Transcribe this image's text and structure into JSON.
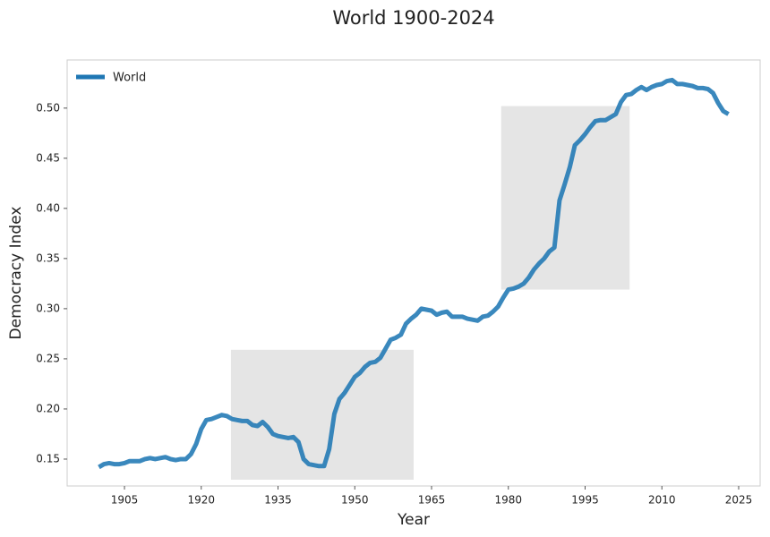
{
  "chart_data": {
    "type": "line",
    "title": "World 1900-2024",
    "xlabel": "Year",
    "ylabel": "Democracy Index",
    "legend": "upper left",
    "grid": false,
    "xlim": [
      1893.8,
      2029.2
    ],
    "ylim": [
      0.1232,
      0.548
    ],
    "xticks": [
      1905,
      1920,
      1935,
      1950,
      1965,
      1980,
      1995,
      2010,
      2025
    ],
    "yticks": [
      0.15,
      {
        "value": 0.2,
        "label": "0.20"
      },
      0.25,
      {
        "value": 0.3,
        "label": "0.30"
      },
      0.35,
      {
        "value": 0.4,
        "label": "0.40"
      },
      0.45,
      {
        "value": 0.5,
        "label": "0.50"
      }
    ],
    "shaded_regions": [
      {
        "xlim": [
          1925.8,
          1961.5
        ],
        "ylim": [
          0.1295,
          0.259
        ],
        "color": "#e5e5e5"
      },
      {
        "xlim": [
          1978.6,
          2003.7
        ],
        "ylim": [
          0.319,
          0.502
        ],
        "color": "#e5e5e5"
      }
    ],
    "x": [
      1900,
      1901,
      1902,
      1903,
      1904,
      1905,
      1906,
      1907,
      1908,
      1909,
      1910,
      1911,
      1912,
      1913,
      1914,
      1915,
      1916,
      1917,
      1918,
      1919,
      1920,
      1921,
      1922,
      1923,
      1924,
      1925,
      1926,
      1927,
      1928,
      1929,
      1930,
      1931,
      1932,
      1933,
      1934,
      1935,
      1936,
      1937,
      1938,
      1939,
      1940,
      1941,
      1942,
      1943,
      1944,
      1945,
      1946,
      1947,
      1948,
      1949,
      1950,
      1951,
      1952,
      1953,
      1954,
      1955,
      1956,
      1957,
      1958,
      1959,
      1960,
      1961,
      1962,
      1963,
      1964,
      1965,
      1966,
      1967,
      1968,
      1969,
      1970,
      1971,
      1972,
      1973,
      1974,
      1975,
      1976,
      1977,
      1978,
      1979,
      1980,
      1981,
      1982,
      1983,
      1984,
      1985,
      1986,
      1987,
      1988,
      1989,
      1990,
      1991,
      1992,
      1993,
      1994,
      1995,
      1996,
      1997,
      1998,
      1999,
      2000,
      2001,
      2002,
      2003,
      2004,
      2005,
      2006,
      2007,
      2008,
      2009,
      2010,
      2011,
      2012,
      2013,
      2014,
      2015,
      2016,
      2017,
      2018,
      2019,
      2020,
      2021,
      2022,
      2023
    ],
    "series": [
      {
        "name": "World",
        "color": "#1f77b4",
        "values": [
          0.142,
          0.145,
          0.146,
          0.145,
          0.145,
          0.146,
          0.148,
          0.148,
          0.148,
          0.15,
          0.151,
          0.15,
          0.151,
          0.152,
          0.15,
          0.149,
          0.15,
          0.15,
          0.155,
          0.165,
          0.18,
          0.189,
          0.19,
          0.192,
          0.194,
          0.193,
          0.19,
          0.189,
          0.188,
          0.188,
          0.184,
          0.183,
          0.187,
          0.182,
          0.175,
          0.173,
          0.172,
          0.171,
          0.172,
          0.167,
          0.15,
          0.145,
          0.144,
          0.143,
          0.143,
          0.16,
          0.195,
          0.21,
          0.216,
          0.224,
          0.232,
          0.236,
          0.242,
          0.246,
          0.247,
          0.251,
          0.26,
          0.269,
          0.271,
          0.274,
          0.285,
          0.29,
          0.294,
          0.3,
          0.299,
          0.298,
          0.294,
          0.296,
          0.297,
          0.292,
          0.292,
          0.292,
          0.29,
          0.289,
          0.288,
          0.292,
          0.293,
          0.297,
          0.302,
          0.311,
          0.319,
          0.32,
          0.322,
          0.325,
          0.331,
          0.339,
          0.345,
          0.35,
          0.357,
          0.361,
          0.408,
          0.424,
          0.441,
          0.463,
          0.468,
          0.474,
          0.481,
          0.487,
          0.488,
          0.488,
          0.491,
          0.494,
          0.506,
          0.513,
          0.514,
          0.518,
          0.521,
          0.518,
          0.521,
          0.523,
          0.524,
          0.527,
          0.528,
          0.524,
          0.524,
          0.523,
          0.522,
          0.52,
          0.52,
          0.519,
          0.515,
          0.505,
          0.497,
          0.494
        ]
      }
    ]
  }
}
